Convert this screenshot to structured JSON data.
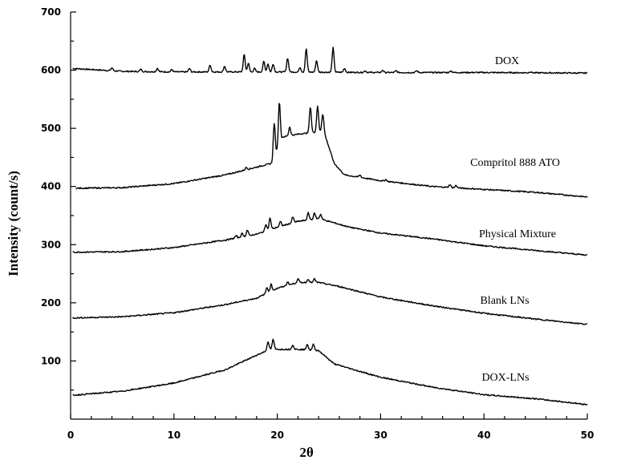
{
  "chart_data": {
    "type": "line",
    "xlabel": "2θ",
    "ylabel": "Intensity (count/s)",
    "xlim": [
      0,
      50
    ],
    "ylim": [
      0,
      700
    ],
    "xticks": [
      0,
      10,
      20,
      30,
      40,
      50
    ],
    "yticks": [
      100,
      200,
      300,
      400,
      500,
      600,
      700
    ],
    "grid": false,
    "legend": "labels placed on right beside each trace",
    "series": [
      {
        "name": "DOX",
        "baseline": [
          [
            0.2,
            603
          ],
          [
            5,
            598
          ],
          [
            10,
            597
          ],
          [
            20,
            597
          ],
          [
            30,
            596
          ],
          [
            40,
            596
          ],
          [
            50,
            595
          ]
        ],
        "peaks": [
          [
            4.0,
            5
          ],
          [
            6.8,
            4
          ],
          [
            8.4,
            6
          ],
          [
            9.8,
            4
          ],
          [
            11.5,
            6
          ],
          [
            13.5,
            12
          ],
          [
            14.9,
            10
          ],
          [
            16.8,
            30
          ],
          [
            17.2,
            15
          ],
          [
            17.8,
            6
          ],
          [
            18.7,
            18
          ],
          [
            19.1,
            14
          ],
          [
            19.6,
            14
          ],
          [
            21.0,
            24
          ],
          [
            22.2,
            8
          ],
          [
            22.8,
            40
          ],
          [
            23.8,
            20
          ],
          [
            25.4,
            42
          ],
          [
            26.5,
            7
          ],
          [
            28.5,
            3
          ],
          [
            30.2,
            4
          ],
          [
            31.5,
            3
          ],
          [
            33.5,
            3
          ],
          [
            36.8,
            3
          ],
          [
            44.5,
            2
          ]
        ],
        "label": "DOX"
      },
      {
        "name": "Compritol 888 ATO",
        "baseline": [
          [
            0.5,
            397
          ],
          [
            5,
            398
          ],
          [
            10,
            405
          ],
          [
            15,
            420
          ],
          [
            19.5,
            440
          ],
          [
            20.5,
            485
          ],
          [
            22,
            490
          ],
          [
            24.5,
            495
          ],
          [
            25.5,
            440
          ],
          [
            26.5,
            420
          ],
          [
            30,
            410
          ],
          [
            35,
            400
          ],
          [
            40,
            395
          ],
          [
            45,
            390
          ],
          [
            50,
            382
          ]
        ],
        "peaks": [
          [
            17.0,
            4
          ],
          [
            19.7,
            60
          ],
          [
            20.2,
            75
          ],
          [
            21.2,
            15
          ],
          [
            23.2,
            45
          ],
          [
            23.9,
            45
          ],
          [
            24.4,
            30
          ],
          [
            28.0,
            4
          ],
          [
            30.5,
            3
          ],
          [
            36.7,
            5
          ],
          [
            37.3,
            4
          ]
        ],
        "label": "Compritol 888 ATO"
      },
      {
        "name": "Physical Mixture",
        "baseline": [
          [
            0.2,
            287
          ],
          [
            5,
            288
          ],
          [
            10,
            295
          ],
          [
            15,
            308
          ],
          [
            18,
            318
          ],
          [
            20,
            330
          ],
          [
            22,
            340
          ],
          [
            24,
            345
          ],
          [
            27,
            330
          ],
          [
            30,
            320
          ],
          [
            35,
            310
          ],
          [
            40,
            298
          ],
          [
            45,
            290
          ],
          [
            50,
            282
          ]
        ],
        "peaks": [
          [
            16.0,
            4
          ],
          [
            16.6,
            6
          ],
          [
            17.1,
            10
          ],
          [
            18.9,
            12
          ],
          [
            19.3,
            20
          ],
          [
            20.3,
            8
          ],
          [
            21.5,
            10
          ],
          [
            23.0,
            12
          ],
          [
            23.6,
            10
          ],
          [
            24.2,
            8
          ]
        ],
        "label": "Physical Mixture"
      },
      {
        "name": "Blank LNs",
        "baseline": [
          [
            0.2,
            174
          ],
          [
            5,
            176
          ],
          [
            10,
            183
          ],
          [
            15,
            197
          ],
          [
            18,
            208
          ],
          [
            20,
            225
          ],
          [
            22,
            235
          ],
          [
            24,
            235
          ],
          [
            26,
            228
          ],
          [
            30,
            210
          ],
          [
            35,
            195
          ],
          [
            40,
            182
          ],
          [
            45,
            172
          ],
          [
            50,
            163
          ]
        ],
        "peaks": [
          [
            19.0,
            10
          ],
          [
            19.4,
            12
          ],
          [
            21.0,
            6
          ],
          [
            22.0,
            6
          ],
          [
            23.0,
            6
          ],
          [
            23.6,
            6
          ]
        ],
        "label": "Blank LNs"
      },
      {
        "name": "DOX-LNs",
        "baseline": [
          [
            0.2,
            41
          ],
          [
            5,
            48
          ],
          [
            10,
            62
          ],
          [
            15,
            85
          ],
          [
            18,
            110
          ],
          [
            19.3,
            120
          ],
          [
            20.5,
            120
          ],
          [
            22,
            120
          ],
          [
            24,
            118
          ],
          [
            25.5,
            95
          ],
          [
            28,
            82
          ],
          [
            30,
            72
          ],
          [
            35,
            55
          ],
          [
            40,
            42
          ],
          [
            45,
            35
          ],
          [
            50,
            25
          ]
        ],
        "peaks": [
          [
            19.1,
            15
          ],
          [
            19.6,
            17
          ],
          [
            21.5,
            8
          ],
          [
            22.9,
            10
          ],
          [
            23.5,
            10
          ]
        ],
        "label": "DOX-LNs"
      }
    ]
  }
}
